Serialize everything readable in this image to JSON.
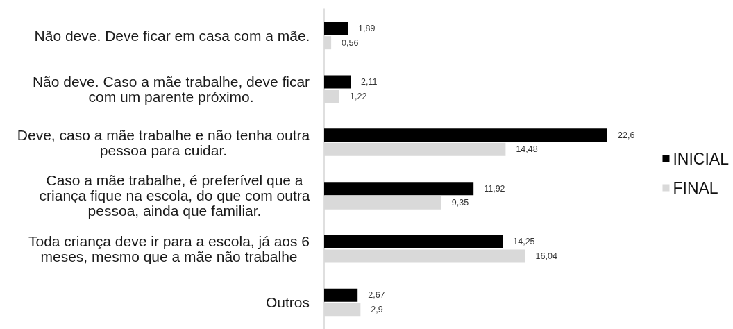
{
  "chart_data": {
    "type": "bar",
    "orientation": "horizontal",
    "categories": [
      "Não deve. Deve ficar em casa com a mãe.",
      "Não deve. Caso a mãe trabalhe, deve ficar\ncom um parente próximo.",
      "Deve, caso a mãe trabalhe e não tenha outra\npessoa para cuidar.",
      "Caso a mãe trabalhe, é preferível que a\ncriança fique na escola, do que com outra\npessoa, ainda que familiar.",
      "Toda criança deve ir para a escola, já aos 6\nmeses, mesmo que a mãe não trabalhe",
      "Outros"
    ],
    "series": [
      {
        "name": "INICIAL",
        "color": "#000000",
        "values": [
          1.89,
          2.11,
          22.6,
          11.92,
          14.25,
          2.67
        ],
        "value_labels": [
          "1,89",
          "2,11",
          "22,6",
          "11,92",
          "14,25",
          "2,67"
        ]
      },
      {
        "name": "FINAL",
        "color": "#d9d9d9",
        "values": [
          0.56,
          1.22,
          14.48,
          9.35,
          16.04,
          2.9
        ],
        "value_labels": [
          "0,56",
          "1,22",
          "14,48",
          "9,35",
          "16,04",
          "2,9"
        ]
      }
    ],
    "legend": "right",
    "tick_labels": "y"
  }
}
